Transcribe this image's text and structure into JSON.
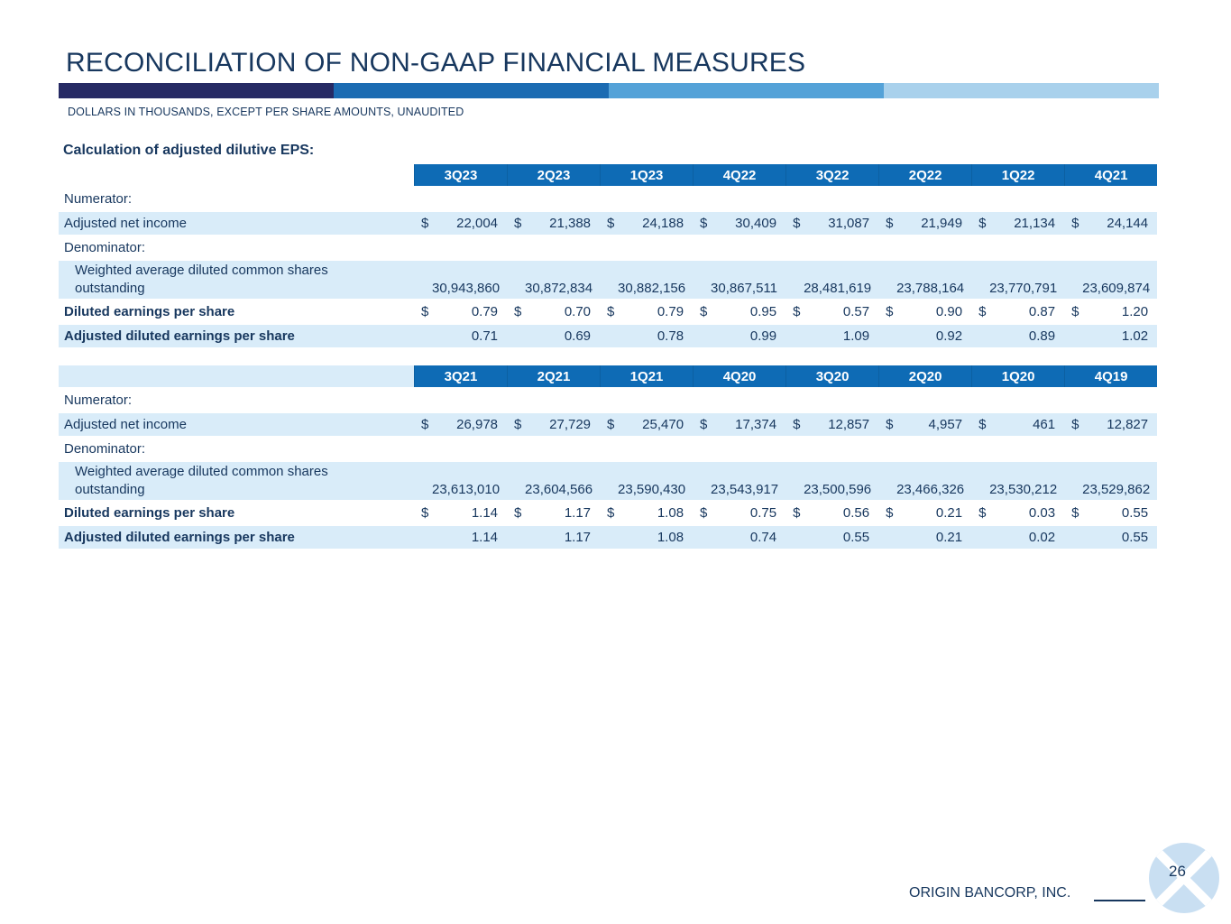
{
  "title": "RECONCILIATION OF NON-GAAP FINANCIAL MEASURES",
  "subtitle": "DOLLARS IN THOUSANDS, EXCEPT PER SHARE AMOUNTS, UNAUDITED",
  "section_label": "Calculation of adjusted dilutive EPS:",
  "colors": {
    "navy": "#17375E",
    "header_blue": "#0E6BB5",
    "row_blue": "#D9ECF9",
    "logo_blue": "#C9DFF2",
    "bar_segments": [
      "#262A64",
      "#1B6BB2",
      "#54A2D8",
      "#A9D1EC"
    ]
  },
  "tables": [
    {
      "header_left_shaded": false,
      "quarters": [
        "3Q23",
        "2Q23",
        "1Q23",
        "4Q22",
        "3Q22",
        "2Q22",
        "1Q22",
        "4Q21"
      ],
      "rows": [
        {
          "label": "Numerator:",
          "type": "section",
          "shaded": false,
          "bold": false,
          "indent": false,
          "dollar": false,
          "multiline": false,
          "values": []
        },
        {
          "label": "Adjusted net income",
          "type": "data",
          "shaded": true,
          "bold": false,
          "indent": false,
          "dollar": true,
          "multiline": false,
          "values": [
            "22,004",
            "21,388",
            "24,188",
            "30,409",
            "31,087",
            "21,949",
            "21,134",
            "24,144"
          ]
        },
        {
          "label": "Denominator:",
          "type": "section",
          "shaded": false,
          "bold": false,
          "indent": false,
          "dollar": false,
          "multiline": false,
          "values": []
        },
        {
          "label": "Weighted average diluted common shares outstanding",
          "type": "data",
          "shaded": true,
          "bold": false,
          "indent": true,
          "dollar": false,
          "multiline": true,
          "values": [
            "30,943,860",
            "30,872,834",
            "30,882,156",
            "30,867,511",
            "28,481,619",
            "23,788,164",
            "23,770,791",
            "23,609,874"
          ]
        },
        {
          "label": "Diluted earnings per share",
          "type": "data",
          "shaded": false,
          "bold": true,
          "indent": false,
          "dollar": true,
          "multiline": false,
          "values": [
            "0.79",
            "0.70",
            "0.79",
            "0.95",
            "0.57",
            "0.90",
            "0.87",
            "1.20"
          ]
        },
        {
          "label": "Adjusted diluted earnings per share",
          "type": "data",
          "shaded": true,
          "bold": true,
          "indent": false,
          "dollar": false,
          "multiline": false,
          "values": [
            "0.71",
            "0.69",
            "0.78",
            "0.99",
            "1.09",
            "0.92",
            "0.89",
            "1.02"
          ]
        }
      ]
    },
    {
      "header_left_shaded": true,
      "quarters": [
        "3Q21",
        "2Q21",
        "1Q21",
        "4Q20",
        "3Q20",
        "2Q20",
        "1Q20",
        "4Q19"
      ],
      "rows": [
        {
          "label": "Numerator:",
          "type": "section",
          "shaded": false,
          "bold": false,
          "indent": false,
          "dollar": false,
          "multiline": false,
          "values": []
        },
        {
          "label": "Adjusted net income",
          "type": "data",
          "shaded": true,
          "bold": false,
          "indent": false,
          "dollar": true,
          "multiline": false,
          "values": [
            "26,978",
            "27,729",
            "25,470",
            "17,374",
            "12,857",
            "4,957",
            "461",
            "12,827"
          ]
        },
        {
          "label": "Denominator:",
          "type": "section",
          "shaded": false,
          "bold": false,
          "indent": false,
          "dollar": false,
          "multiline": false,
          "values": []
        },
        {
          "label": "Weighted average diluted common shares outstanding",
          "type": "data",
          "shaded": true,
          "bold": false,
          "indent": true,
          "dollar": false,
          "multiline": true,
          "values": [
            "23,613,010",
            "23,604,566",
            "23,590,430",
            "23,543,917",
            "23,500,596",
            "23,466,326",
            "23,530,212",
            "23,529,862"
          ]
        },
        {
          "label": "Diluted earnings per share",
          "type": "data",
          "shaded": false,
          "bold": true,
          "indent": false,
          "dollar": true,
          "multiline": false,
          "values": [
            "1.14",
            "1.17",
            "1.08",
            "0.75",
            "0.56",
            "0.21",
            "0.03",
            "0.55"
          ]
        },
        {
          "label": "Adjusted diluted earnings per share",
          "type": "data",
          "shaded": true,
          "bold": true,
          "indent": false,
          "dollar": false,
          "multiline": false,
          "values": [
            "1.14",
            "1.17",
            "1.08",
            "0.74",
            "0.55",
            "0.21",
            "0.02",
            "0.55"
          ]
        }
      ]
    }
  ],
  "footer": {
    "company": "ORIGIN BANCORP, INC.",
    "page_number": "26"
  }
}
